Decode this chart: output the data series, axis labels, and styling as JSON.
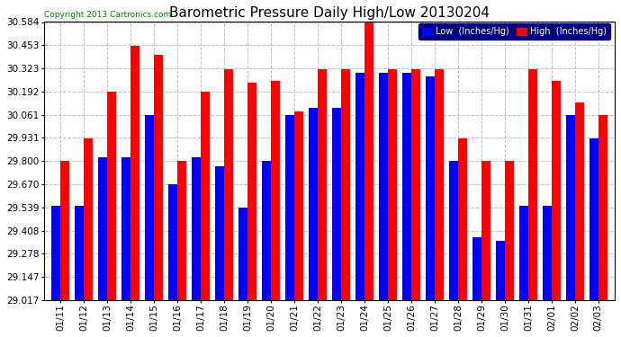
{
  "title": "Barometric Pressure Daily High/Low 20130204",
  "copyright": "Copyright 2013 Cartronics.com",
  "legend_low": "Low  (Inches/Hg)",
  "legend_high": "High  (Inches/Hg)",
  "dates": [
    "01/11",
    "01/12",
    "01/13",
    "01/14",
    "01/15",
    "01/16",
    "01/17",
    "01/18",
    "01/19",
    "01/20",
    "01/21",
    "01/22",
    "01/23",
    "01/24",
    "01/25",
    "01/26",
    "01/27",
    "01/28",
    "01/29",
    "01/30",
    "01/31",
    "02/01",
    "02/02",
    "02/03"
  ],
  "low": [
    29.55,
    29.55,
    29.82,
    29.82,
    30.06,
    29.67,
    29.82,
    29.77,
    29.54,
    29.8,
    30.06,
    30.1,
    30.1,
    30.3,
    30.3,
    30.3,
    30.28,
    29.8,
    29.37,
    29.35,
    29.55,
    29.55,
    30.06,
    29.93
  ],
  "high": [
    29.8,
    29.93,
    30.19,
    30.45,
    30.4,
    29.8,
    30.19,
    30.32,
    30.24,
    30.25,
    30.08,
    30.32,
    30.32,
    30.58,
    30.32,
    30.32,
    30.32,
    29.93,
    29.8,
    29.8,
    30.32,
    30.25,
    30.13,
    30.06
  ],
  "ymin": 29.017,
  "ymax": 30.584,
  "yticks": [
    29.017,
    29.147,
    29.278,
    29.408,
    29.539,
    29.67,
    29.8,
    29.931,
    30.061,
    30.192,
    30.323,
    30.453,
    30.584
  ],
  "color_low": "#0000FF",
  "color_high": "#FF0000",
  "bg_color": "#FFFFFF",
  "plot_bg": "#FFFFFF",
  "grid_color": "#C0C0C0",
  "title_fontsize": 11,
  "tick_fontsize": 7.5,
  "bar_width": 0.38
}
